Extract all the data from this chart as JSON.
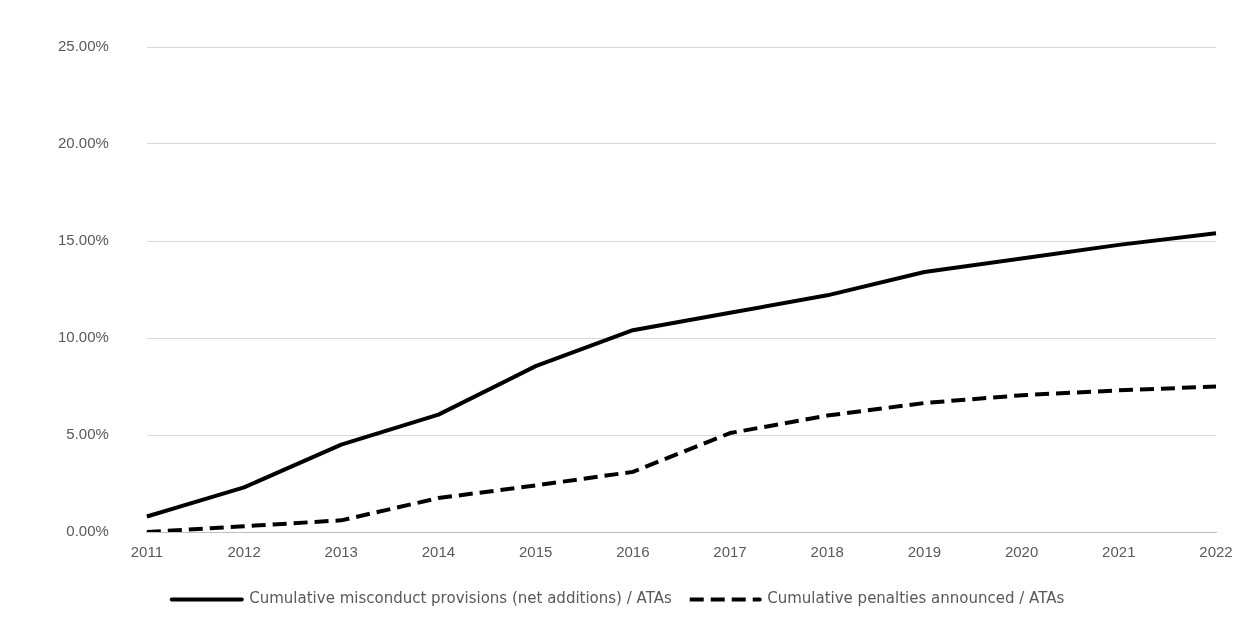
{
  "chart_data": {
    "type": "line",
    "categories": [
      "2011",
      "2012",
      "2013",
      "2014",
      "2015",
      "2016",
      "2017",
      "2018",
      "2019",
      "2020",
      "2021",
      "2022"
    ],
    "series": [
      {
        "name": "Cumulative misconduct provisions (net additions) / ATAs",
        "color": "#000000",
        "line_style": "solid",
        "values": [
          0.8,
          2.3,
          4.5,
          6.05,
          8.55,
          10.4,
          11.3,
          12.2,
          13.4,
          14.1,
          14.8,
          15.4
        ]
      },
      {
        "name": "Cumulative penalties announced / ATAs",
        "color": "#000000",
        "line_style": "dashed",
        "values": [
          0,
          0.3,
          0.6,
          1.75,
          2.4,
          3.1,
          5.1,
          6.0,
          6.65,
          7.05,
          7.3,
          7.5
        ]
      }
    ],
    "ylim": [
      0,
      25
    ],
    "yticks": [
      {
        "value": 0,
        "label": "0.00%"
      },
      {
        "value": 5,
        "label": "5.00%"
      },
      {
        "value": 10,
        "label": "10.00%"
      },
      {
        "value": 15,
        "label": "15.00%"
      },
      {
        "value": 20,
        "label": "20.00%"
      },
      {
        "value": 25,
        "label": "25.00%"
      }
    ],
    "grid": "y",
    "legend": "bottom",
    "marker": "none"
  }
}
